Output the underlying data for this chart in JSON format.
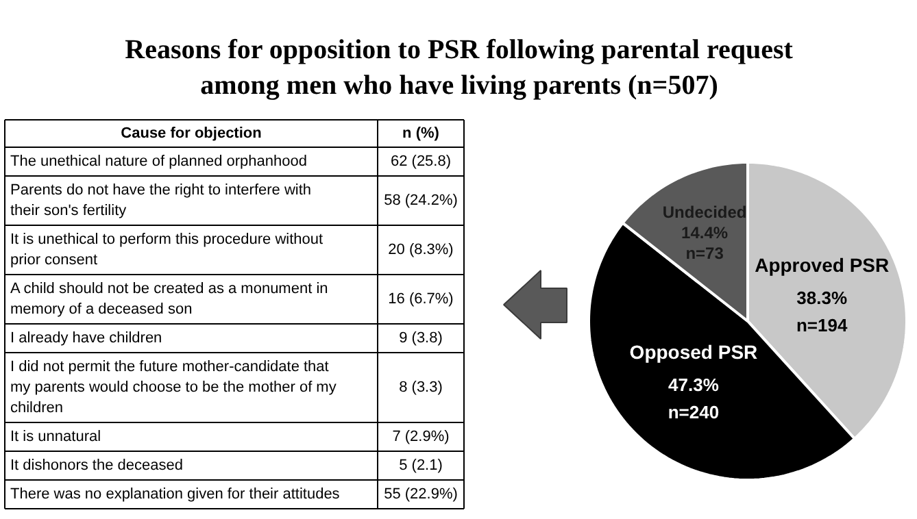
{
  "chart_data": [
    {
      "type": "pie",
      "title": "Reasons for opposition to PSR following parental request\namong men who have living parents (n=507)",
      "categories": [
        "Approved PSR",
        "Opposed PSR",
        "Undecided"
      ],
      "values": [
        194,
        240,
        73
      ],
      "value_labels": [
        "38.3%\nn=194",
        "47.3%\nn=240",
        "14.4%\nn=73"
      ],
      "colors": [
        "#c8c8c8",
        "#000000",
        "#595959"
      ]
    },
    {
      "type": "other",
      "annotations": [
        "Cause for objection",
        "n (%)"
      ],
      "categories": [
        "The unethical nature of planned orphanhood",
        "Parents do not have the right to interfere with their son's fertility",
        "It is unethical to perform this procedure without prior consent",
        "A child should not be created as a monument in memory of a deceased son",
        "I already have children",
        "I did not permit the future mother-candidate that my parents would choose to be the mother of my children",
        "It is unnatural",
        "It dishonors the deceased",
        "There was no explanation given for their attitudes"
      ],
      "values": [
        62,
        58,
        20,
        16,
        9,
        8,
        7,
        5,
        55
      ],
      "value_labels": [
        "62 (25.8)",
        "58 (24.2%)",
        "20 (8.3%)",
        "16 (6.7%)",
        "9 (3.8)",
        "8 (3.3)",
        "7 (2.9%)",
        "5 (2.1)",
        "55 (22.9%)"
      ]
    }
  ]
}
